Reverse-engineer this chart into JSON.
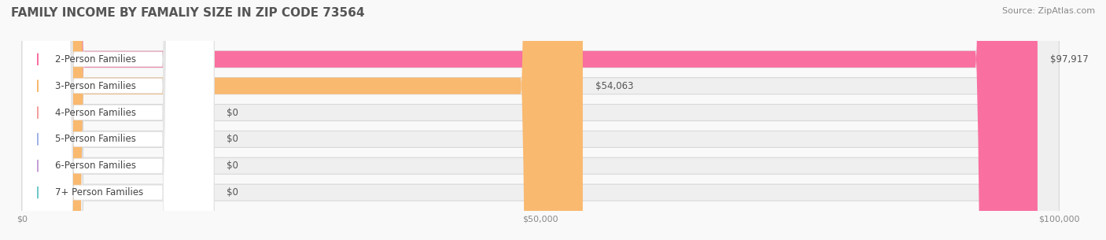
{
  "title": "FAMILY INCOME BY FAMALIY SIZE IN ZIP CODE 73564",
  "source": "Source: ZipAtlas.com",
  "categories": [
    "2-Person Families",
    "3-Person Families",
    "4-Person Families",
    "5-Person Families",
    "6-Person Families",
    "7+ Person Families"
  ],
  "values": [
    97917,
    54063,
    0,
    0,
    0,
    0
  ],
  "bar_colors": [
    "#F96FA0",
    "#F9B96F",
    "#F4A0A0",
    "#A0B4E8",
    "#C4A0D4",
    "#70C8C8"
  ],
  "label_colors": [
    "#F96FA0",
    "#F9B96F",
    "#F4A0A0",
    "#A0B4E8",
    "#C4A0D4",
    "#70C8C8"
  ],
  "value_labels": [
    "$97,917",
    "$54,063",
    "$0",
    "$0",
    "$0",
    "$0"
  ],
  "xlim": [
    0,
    100000
  ],
  "xticks": [
    0,
    50000,
    100000
  ],
  "xticklabels": [
    "$0",
    "$50,000",
    "$100,000"
  ],
  "background_color": "#f9f9f9",
  "bar_background_color": "#efefef",
  "title_fontsize": 11,
  "source_fontsize": 8,
  "label_fontsize": 8.5,
  "value_fontsize": 8.5
}
